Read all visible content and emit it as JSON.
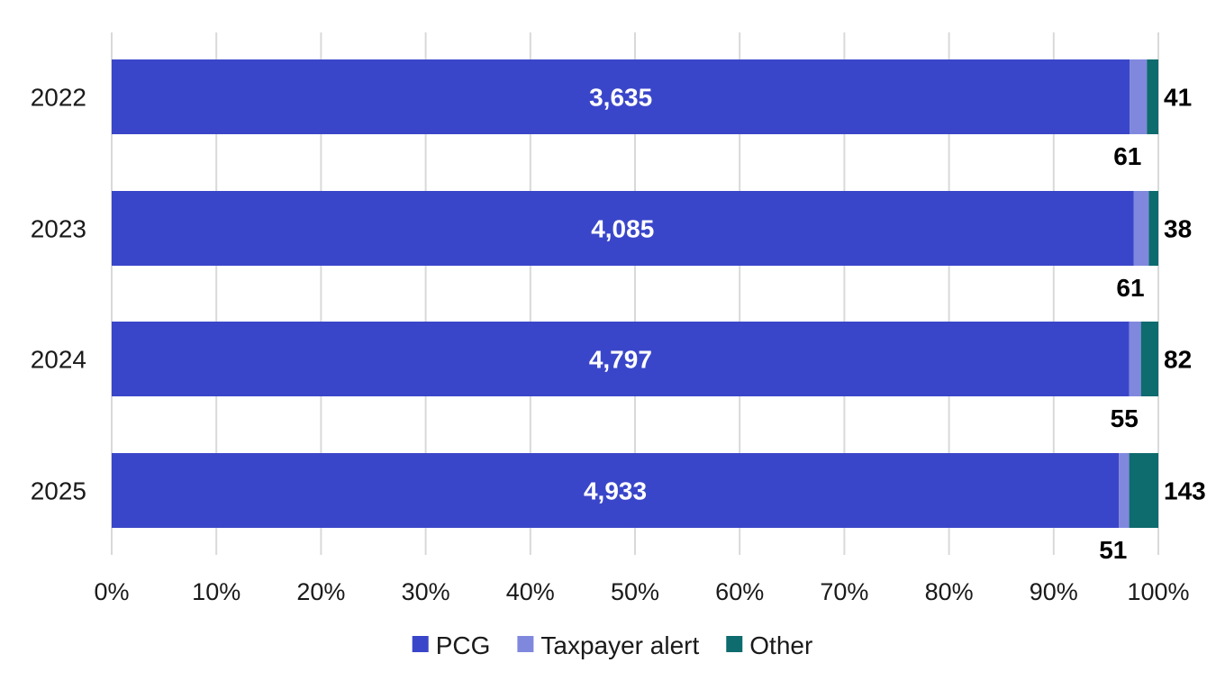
{
  "chart_data": {
    "type": "bar",
    "orientation": "horizontal",
    "stacked": "percent",
    "categories": [
      "2022",
      "2023",
      "2024",
      "2025"
    ],
    "series": [
      {
        "name": "PCG",
        "values": [
          3635,
          4085,
          4797,
          4933
        ],
        "color": "#3a46c9"
      },
      {
        "name": "Taxpayer alert",
        "values": [
          61,
          61,
          55,
          51
        ],
        "color": "#8088de"
      },
      {
        "name": "Other",
        "values": [
          41,
          38,
          82,
          143
        ],
        "color": "#0e6b6e"
      }
    ],
    "data_labels": {
      "PCG": [
        "3,635",
        "4,085",
        "4,797",
        "4,933"
      ],
      "Taxpayer alert": [
        "61",
        "61",
        "55",
        "51"
      ],
      "Other": [
        "41",
        "38",
        "82",
        "143"
      ]
    },
    "x_ticks": [
      "0%",
      "10%",
      "20%",
      "30%",
      "40%",
      "50%",
      "60%",
      "70%",
      "80%",
      "90%",
      "100%"
    ],
    "xlim": [
      0,
      100
    ],
    "grid": "vertical",
    "legend": "bottom-center",
    "title": "",
    "xlabel": "",
    "ylabel": ""
  }
}
